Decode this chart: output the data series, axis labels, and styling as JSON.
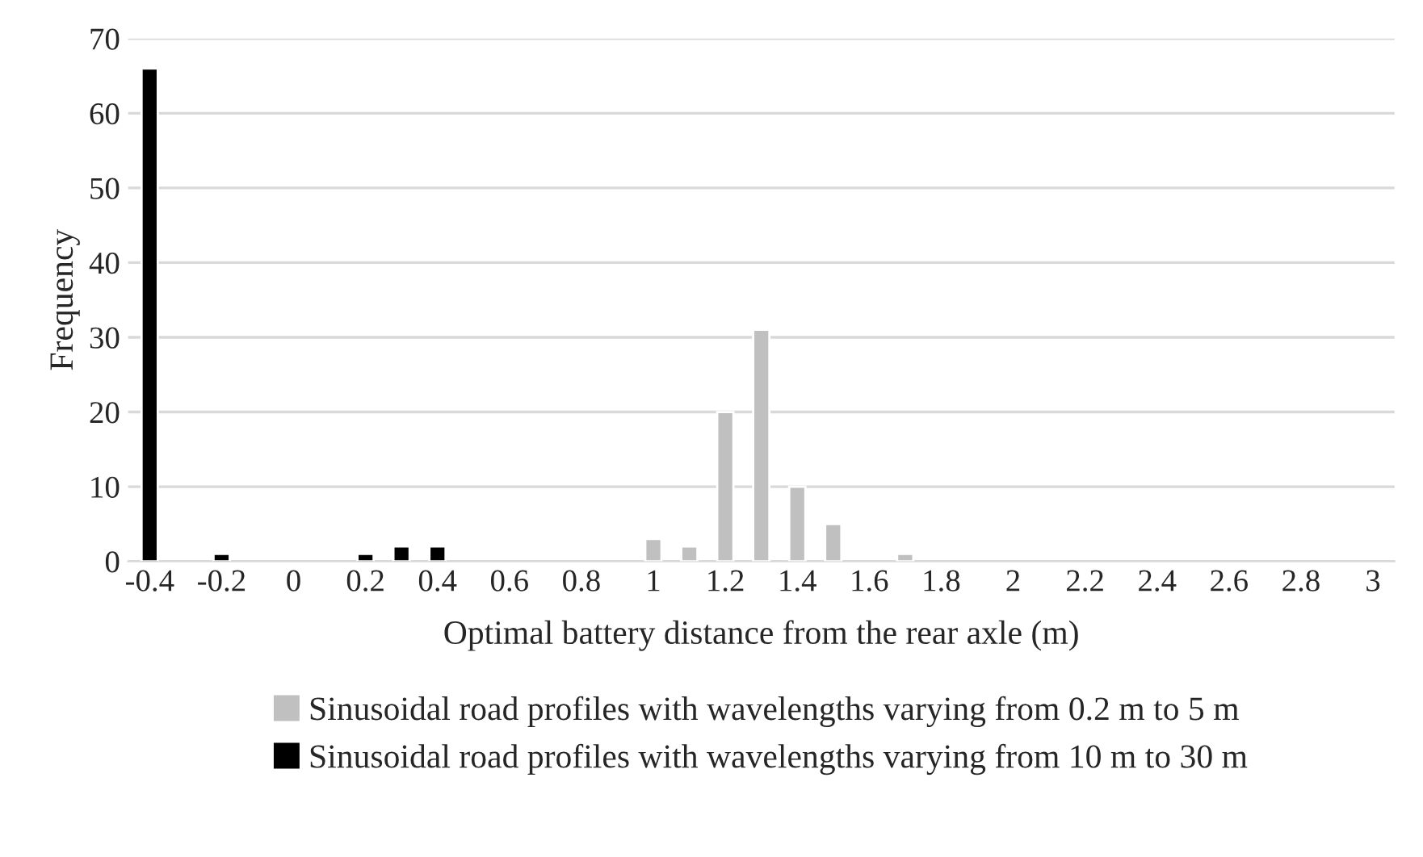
{
  "chart_data": {
    "type": "bar",
    "xlabel": "Optimal battery distance from the rear axle (m)",
    "ylabel": "Frequency",
    "categories": [
      "-0.4",
      null,
      "-0.2",
      null,
      "0",
      null,
      "0.2",
      null,
      "0.4",
      null,
      "0.6",
      null,
      "0.8",
      null,
      "1",
      null,
      "1.2",
      null,
      "1.4",
      null,
      "1.6",
      null,
      "1.8",
      null,
      "2",
      null,
      "2.2",
      null,
      "2.4",
      null,
      "2.6",
      null,
      "2.8",
      null,
      "3"
    ],
    "series": [
      {
        "name": "Sinusoidal road profiles with wavelengths varying from 0.2 m to 5 m",
        "color": "#c0c0c0",
        "values": [
          null,
          null,
          null,
          null,
          null,
          null,
          null,
          null,
          null,
          null,
          null,
          null,
          null,
          null,
          3,
          2,
          20,
          31,
          10,
          5,
          null,
          1,
          null,
          null,
          null,
          null,
          null,
          null,
          null,
          null,
          null,
          null,
          null,
          null,
          null
        ]
      },
      {
        "name": "Sinusoidal road profiles with wavelengths varying from 10 m to 30 m",
        "color": "#000000",
        "values": [
          66,
          null,
          1,
          null,
          null,
          null,
          1,
          2,
          2,
          null,
          null,
          null,
          null,
          null,
          null,
          null,
          null,
          null,
          null,
          null,
          null,
          null,
          null,
          null,
          null,
          null,
          null,
          null,
          null,
          null,
          null,
          null,
          null,
          null,
          null
        ]
      }
    ],
    "ylim": [
      0,
      70
    ],
    "yticks": [
      0,
      10,
      20,
      30,
      40,
      50,
      60,
      70
    ],
    "grid": "y",
    "legend": "bottom"
  }
}
